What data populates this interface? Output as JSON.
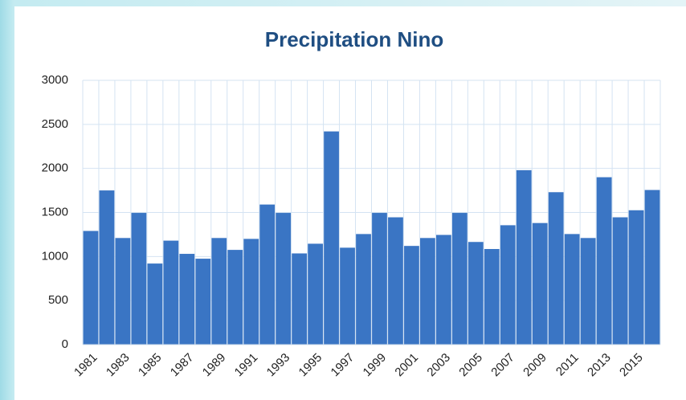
{
  "chart_data": {
    "type": "bar",
    "title": "Precipitation  Nino",
    "categories": [
      "1981",
      null,
      "1983",
      null,
      "1985",
      null,
      "1987",
      null,
      "1989",
      null,
      "1991",
      null,
      "1993",
      null,
      "1995",
      null,
      "1997",
      null,
      "1999",
      null,
      "2001",
      null,
      "2003",
      null,
      "2005",
      null,
      "2007",
      null,
      "2009",
      null,
      "2011",
      null,
      "2013",
      null,
      "2015",
      null
    ],
    "values": [
      1290,
      1750,
      1210,
      1495,
      920,
      1180,
      1030,
      975,
      1210,
      1075,
      1200,
      1590,
      1495,
      1035,
      1145,
      2420,
      1100,
      1255,
      1495,
      1445,
      1120,
      1210,
      1245,
      1495,
      1165,
      1085,
      1355,
      1980,
      1380,
      1730,
      1255,
      1210,
      1900,
      1445,
      1525,
      1755
    ],
    "color": "#3a75c4",
    "ylim": [
      0,
      3000
    ],
    "yticks": [
      0,
      500,
      1000,
      1500,
      2000,
      2500,
      3000
    ],
    "grid": true
  }
}
